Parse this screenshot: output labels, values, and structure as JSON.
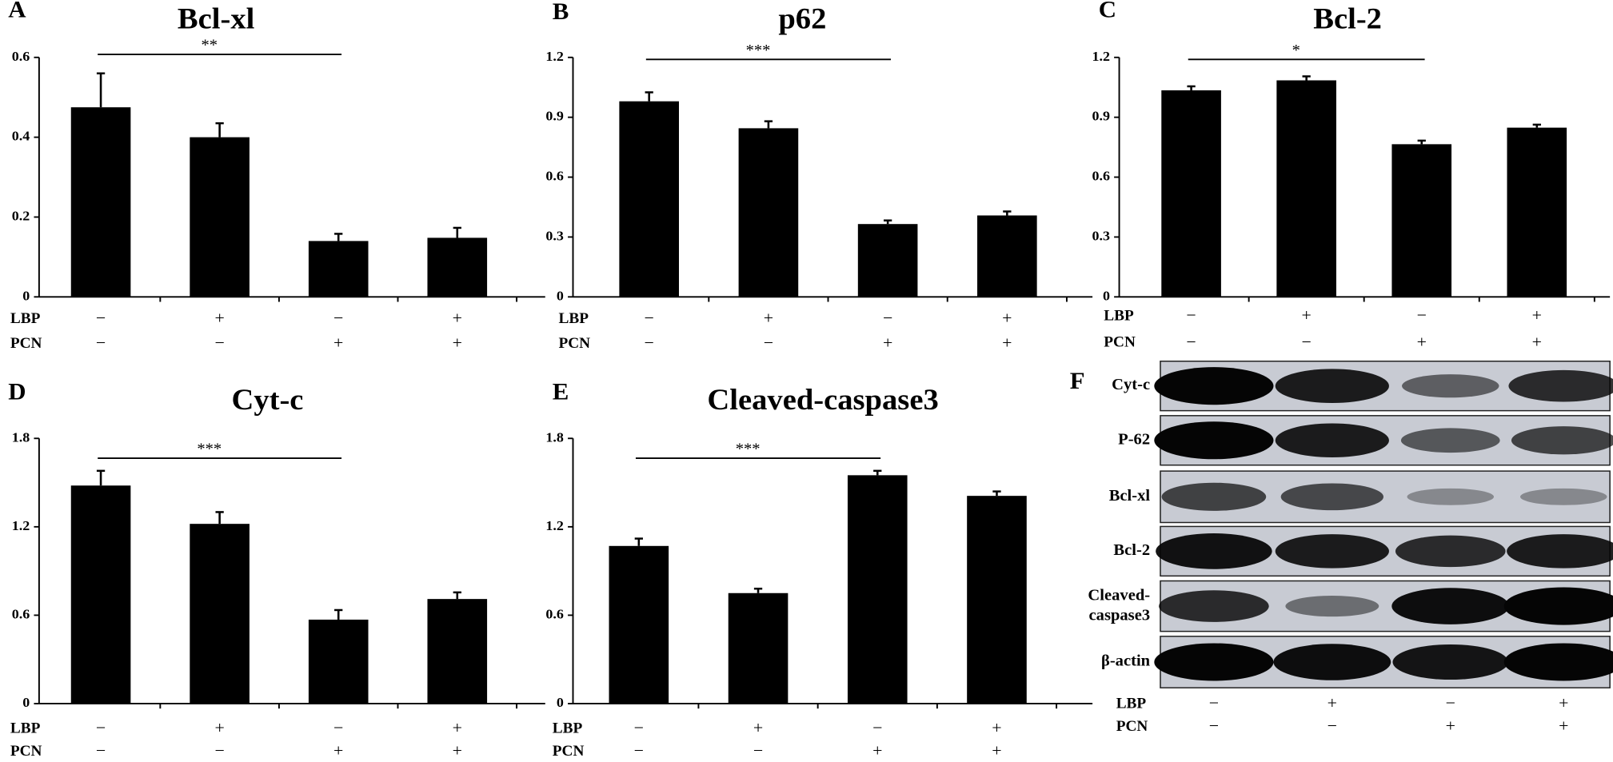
{
  "chart_data": [
    {
      "type": "bar",
      "label": "A",
      "title": "Bcl-xl",
      "color": "#000000",
      "series": [
        {
          "values": [
            0.475,
            0.4,
            0.14,
            0.148
          ],
          "errors": [
            0.085,
            0.035,
            0.018,
            0.025
          ]
        }
      ],
      "ylim": [
        0,
        0.6
      ],
      "yticks": [
        0,
        0.2,
        0.4,
        0.6
      ],
      "grid": false,
      "significance": "**",
      "treatments": [
        {
          "name": "LBP",
          "signs": [
            "−",
            "+",
            "−",
            "+"
          ]
        },
        {
          "name": "PCN",
          "signs": [
            "−",
            "−",
            "+",
            "+"
          ]
        }
      ]
    },
    {
      "type": "bar",
      "label": "B",
      "title": "p62",
      "color": "#000000",
      "series": [
        {
          "values": [
            0.98,
            0.845,
            0.365,
            0.408
          ],
          "errors": [
            0.045,
            0.035,
            0.018,
            0.02
          ]
        }
      ],
      "ylim": [
        0,
        1.2
      ],
      "yticks": [
        0,
        0.3,
        0.6,
        0.9,
        1.2
      ],
      "grid": false,
      "significance": "***",
      "treatments": [
        {
          "name": "LBP",
          "signs": [
            "−",
            "+",
            "−",
            "+"
          ]
        },
        {
          "name": "PCN",
          "signs": [
            "−",
            "−",
            "+",
            "+"
          ]
        }
      ]
    },
    {
      "type": "bar",
      "label": "C",
      "title": "Bcl-2",
      "color": "#000000",
      "series": [
        {
          "values": [
            1.035,
            1.085,
            0.765,
            0.848
          ],
          "errors": [
            0.02,
            0.02,
            0.018,
            0.015
          ]
        }
      ],
      "ylim": [
        0,
        1.2
      ],
      "yticks": [
        0,
        0.3,
        0.6,
        0.9,
        1.2
      ],
      "grid": false,
      "significance": "*",
      "treatments": [
        {
          "name": "LBP",
          "signs": [
            "−",
            "+",
            "−",
            "+"
          ]
        },
        {
          "name": "PCN",
          "signs": [
            "−",
            "−",
            "+",
            "+"
          ]
        }
      ]
    },
    {
      "type": "bar",
      "label": "D",
      "title": "Cyt-c",
      "color": "#000000",
      "series": [
        {
          "values": [
            1.48,
            1.22,
            0.57,
            0.71
          ],
          "errors": [
            0.1,
            0.08,
            0.065,
            0.045
          ]
        }
      ],
      "ylim": [
        0,
        1.8
      ],
      "yticks": [
        0,
        0.6,
        1.2,
        1.8
      ],
      "grid": false,
      "significance": "***",
      "treatments": [
        {
          "name": "LBP",
          "signs": [
            "−",
            "+",
            "−",
            "+"
          ]
        },
        {
          "name": "PCN",
          "signs": [
            "−",
            "−",
            "+",
            "+"
          ]
        }
      ]
    },
    {
      "type": "bar",
      "label": "E",
      "title": "Cleaved-caspase3",
      "color": "#000000",
      "series": [
        {
          "values": [
            1.07,
            0.75,
            1.55,
            1.41
          ],
          "errors": [
            0.05,
            0.03,
            0.03,
            0.03
          ]
        }
      ],
      "ylim": [
        0,
        1.8
      ],
      "yticks": [
        0,
        0.6,
        1.2,
        1.8
      ],
      "grid": false,
      "significance": "***",
      "treatments": [
        {
          "name": "LBP",
          "signs": [
            "−",
            "+",
            "−",
            "+"
          ]
        },
        {
          "name": "PCN",
          "signs": [
            "−",
            "−",
            "+",
            "+"
          ]
        }
      ]
    }
  ],
  "blot": {
    "label": "F",
    "rows": [
      "Cyt-c",
      "P-62",
      "Bcl-xl",
      "Bcl-2",
      "Cleaved-caspase3",
      "β-actin"
    ],
    "treatments": [
      {
        "name": "LBP",
        "signs": [
          "−",
          "+",
          "−",
          "+"
        ]
      },
      {
        "name": "PCN",
        "signs": [
          "−",
          "−",
          "+",
          "+"
        ]
      }
    ]
  }
}
